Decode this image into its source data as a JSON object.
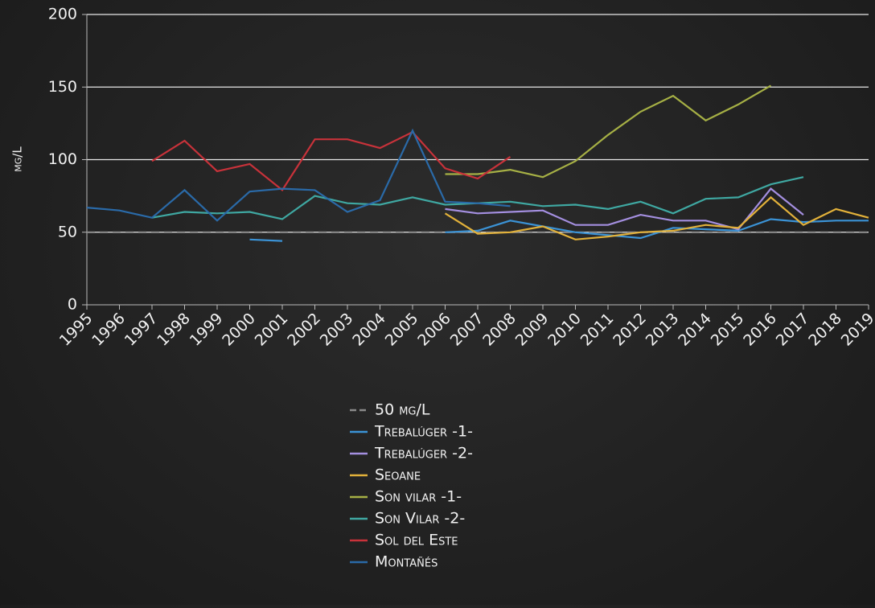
{
  "chart_data": {
    "type": "line",
    "ylabel": "mg/L",
    "categories": [
      "1995",
      "1996",
      "1997",
      "1998",
      "1999",
      "2000",
      "2001",
      "2002",
      "2003",
      "2004",
      "2005",
      "2006",
      "2007",
      "2008",
      "2009",
      "2010",
      "2011",
      "2012",
      "2013",
      "2014",
      "2015",
      "2016",
      "2017",
      "2018",
      "2019"
    ],
    "ylim": [
      0,
      200
    ],
    "yticks": [
      0,
      50,
      100,
      150,
      200
    ],
    "grid": true,
    "legend": "bottom",
    "series": [
      {
        "name": "50 mg/L",
        "color": "#8a8a8a",
        "dashed": true,
        "values": [
          50,
          50,
          50,
          50,
          50,
          50,
          50,
          50,
          50,
          50,
          50,
          50,
          50,
          50,
          50,
          50,
          50,
          50,
          50,
          50,
          50,
          50,
          50,
          50,
          50
        ]
      },
      {
        "name": "Trebalúger -1-",
        "color": "#3b93d6",
        "values": [
          null,
          null,
          null,
          null,
          null,
          45,
          44,
          null,
          null,
          null,
          null,
          50,
          51,
          58,
          54,
          50,
          48,
          46,
          53,
          52,
          51,
          59,
          57,
          58,
          58
        ]
      },
      {
        "name": "Trebalúger -2-",
        "color": "#a48fe0",
        "values": [
          null,
          null,
          null,
          null,
          null,
          null,
          null,
          null,
          null,
          null,
          null,
          66,
          63,
          64,
          65,
          55,
          55,
          62,
          58,
          58,
          52,
          80,
          62,
          null,
          null
        ]
      },
      {
        "name": "Seoane",
        "color": "#e2b13a",
        "values": [
          null,
          null,
          null,
          null,
          null,
          null,
          null,
          null,
          null,
          null,
          null,
          63,
          49,
          50,
          54,
          45,
          47,
          50,
          51,
          55,
          53,
          74,
          55,
          66,
          60
        ]
      },
      {
        "name": "Son vilar -1-",
        "color": "#a6b045",
        "values": [
          null,
          null,
          null,
          null,
          null,
          null,
          null,
          null,
          null,
          null,
          null,
          90,
          90,
          93,
          88,
          99,
          117,
          133,
          144,
          127,
          138,
          151,
          null,
          null,
          null
        ]
      },
      {
        "name": "Son Vilar -2-",
        "color": "#3fa8a2",
        "values": [
          null,
          null,
          60,
          64,
          63,
          64,
          59,
          75,
          70,
          69,
          74,
          69,
          70,
          71,
          68,
          69,
          66,
          71,
          63,
          73,
          74,
          83,
          88,
          null,
          null
        ]
      },
      {
        "name": "Sol del Este",
        "color": "#c8323a",
        "values": [
          null,
          null,
          99,
          113,
          92,
          97,
          79,
          114,
          114,
          108,
          119,
          94,
          87,
          102,
          null,
          null,
          null,
          null,
          null,
          null,
          null,
          null,
          null,
          null,
          null
        ]
      },
      {
        "name": "Montañés",
        "color": "#2a6aa8",
        "values": [
          67,
          65,
          60,
          79,
          58,
          78,
          80,
          79,
          64,
          72,
          120,
          71,
          70,
          68,
          null,
          null,
          null,
          null,
          null,
          null,
          null,
          null,
          null,
          null,
          null
        ]
      }
    ]
  }
}
